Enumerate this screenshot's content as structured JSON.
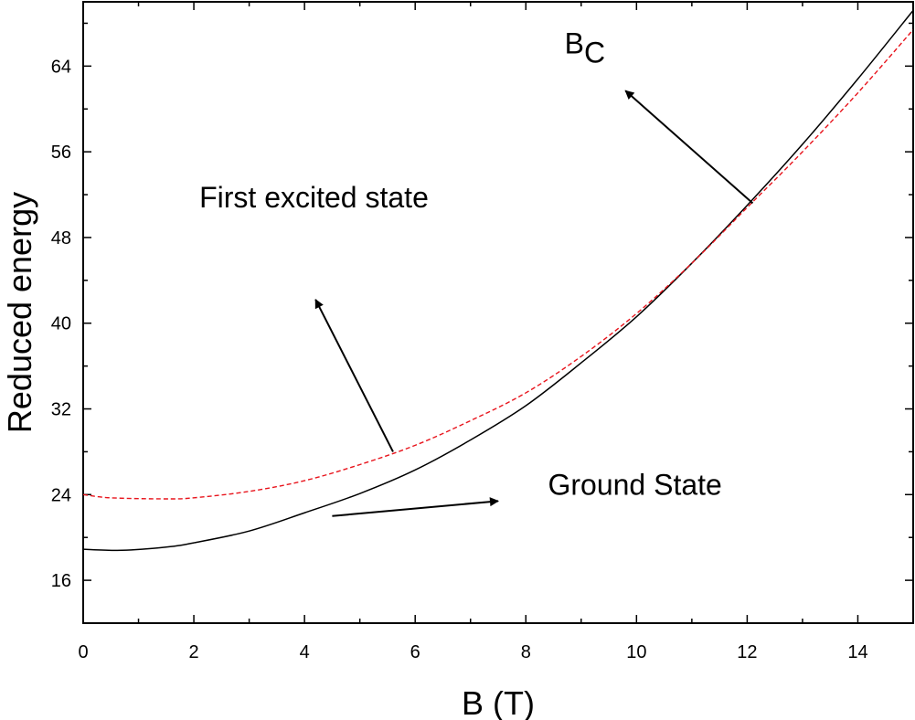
{
  "chart_data": {
    "type": "line",
    "xlabel": "B (T)",
    "ylabel": "Reduced energy",
    "xlim": [
      0,
      15
    ],
    "ylim": [
      12,
      70
    ],
    "xticks": [
      0,
      2,
      4,
      6,
      8,
      10,
      12,
      14
    ],
    "yticks": [
      16,
      24,
      32,
      40,
      48,
      56,
      64
    ],
    "grid": false,
    "series": [
      {
        "color": "#000000",
        "dash": "solid",
        "x": [
          0,
          0.7,
          1.5,
          2,
          3,
          4,
          5,
          6,
          7,
          8,
          9,
          10,
          11,
          12,
          13,
          14,
          15
        ],
        "y": [
          18.9,
          18.8,
          19.1,
          19.5,
          20.6,
          22.3,
          24.1,
          26.3,
          29.1,
          32.3,
          36.3,
          40.6,
          45.6,
          51.0,
          56.7,
          62.8,
          69.2
        ]
      },
      {
        "color": "#e8141c",
        "dash": "dashed",
        "x": [
          0,
          0.5,
          1.5,
          2,
          3,
          4,
          5,
          6,
          7,
          8,
          9,
          10,
          11,
          12,
          13,
          14,
          15
        ],
        "y": [
          24.0,
          23.7,
          23.6,
          23.7,
          24.3,
          25.3,
          26.8,
          28.6,
          30.9,
          33.5,
          36.9,
          40.9,
          45.6,
          50.8,
          56.0,
          61.5,
          67.4
        ]
      }
    ],
    "annotations": [
      {
        "id": "first",
        "text": "First excited state",
        "at": [
          2.1,
          50.8
        ],
        "arrow": {
          "from": [
            5.6,
            28.0
          ],
          "to": [
            4.2,
            42.2
          ]
        }
      },
      {
        "id": "ground",
        "text": "Ground State",
        "at": [
          8.4,
          24.0
        ],
        "arrow": {
          "from": [
            4.5,
            22.0
          ],
          "to": [
            7.5,
            23.4
          ]
        }
      },
      {
        "id": "bc",
        "text": "B",
        "sub": "C",
        "at": [
          8.7,
          65.2
        ],
        "arrow": {
          "from": [
            12.1,
            51.2
          ],
          "to": [
            9.8,
            61.7
          ]
        }
      }
    ]
  }
}
